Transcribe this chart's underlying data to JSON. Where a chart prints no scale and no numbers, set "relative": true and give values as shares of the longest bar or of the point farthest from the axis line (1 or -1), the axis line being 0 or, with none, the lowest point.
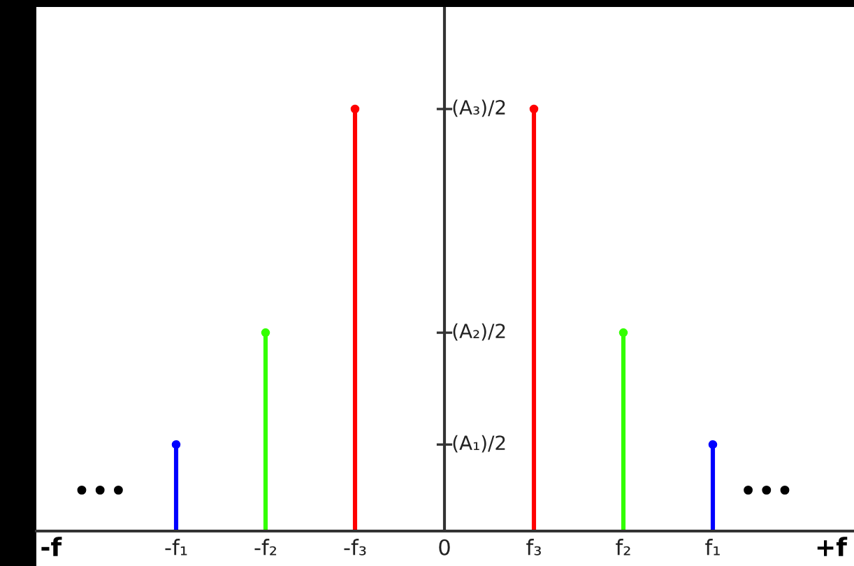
{
  "chart_data": {
    "type": "lollipop",
    "relative": true,
    "marker": "circle",
    "categories": [
      "-f₁",
      "-f₂",
      "-f₃",
      "0",
      "f₃",
      "f₂",
      "f₁"
    ],
    "values": [
      0.205,
      0.47,
      1,
      null,
      1,
      0.47,
      0.205
    ],
    "colors": [
      "#0000ff",
      "#33ff00",
      "#ff0000",
      "#000000",
      "#ff0000",
      "#33ff00",
      "#0000ff"
    ],
    "ref_lines": [
      {
        "axis": "x",
        "value": "0",
        "color": "#333333"
      }
    ],
    "annotations": [
      "(A₃)/2",
      "(A₂)/2",
      "(A₁)/2",
      "•••",
      "•••",
      "-f",
      "+f"
    ]
  }
}
